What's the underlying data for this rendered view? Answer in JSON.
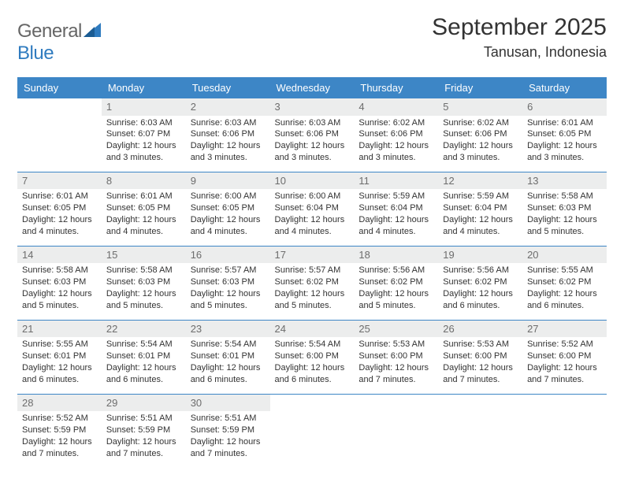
{
  "branding": {
    "logo_general": "General",
    "logo_blue": "Blue",
    "logo_accent_color": "#2f7bbf",
    "logo_text_color": "#666666"
  },
  "header": {
    "month_title": "September 2025",
    "location": "Tanusan, Indonesia",
    "title_fontsize": 30,
    "location_fontsize": 18
  },
  "calendar": {
    "type": "table",
    "header_bg": "#3d86c6",
    "header_text_color": "#ffffff",
    "daynum_bg": "#eceded",
    "daynum_color": "#6d6d6d",
    "row_border_color": "#3d86c6",
    "body_text_color": "#333333",
    "body_fontsize": 11,
    "columns": [
      "Sunday",
      "Monday",
      "Tuesday",
      "Wednesday",
      "Thursday",
      "Friday",
      "Saturday"
    ],
    "weeks": [
      [
        {
          "day": "",
          "lines": []
        },
        {
          "day": "1",
          "lines": [
            "Sunrise: 6:03 AM",
            "Sunset: 6:07 PM",
            "Daylight: 12 hours and 3 minutes."
          ]
        },
        {
          "day": "2",
          "lines": [
            "Sunrise: 6:03 AM",
            "Sunset: 6:06 PM",
            "Daylight: 12 hours and 3 minutes."
          ]
        },
        {
          "day": "3",
          "lines": [
            "Sunrise: 6:03 AM",
            "Sunset: 6:06 PM",
            "Daylight: 12 hours and 3 minutes."
          ]
        },
        {
          "day": "4",
          "lines": [
            "Sunrise: 6:02 AM",
            "Sunset: 6:06 PM",
            "Daylight: 12 hours and 3 minutes."
          ]
        },
        {
          "day": "5",
          "lines": [
            "Sunrise: 6:02 AM",
            "Sunset: 6:06 PM",
            "Daylight: 12 hours and 3 minutes."
          ]
        },
        {
          "day": "6",
          "lines": [
            "Sunrise: 6:01 AM",
            "Sunset: 6:05 PM",
            "Daylight: 12 hours and 3 minutes."
          ]
        }
      ],
      [
        {
          "day": "7",
          "lines": [
            "Sunrise: 6:01 AM",
            "Sunset: 6:05 PM",
            "Daylight: 12 hours and 4 minutes."
          ]
        },
        {
          "day": "8",
          "lines": [
            "Sunrise: 6:01 AM",
            "Sunset: 6:05 PM",
            "Daylight: 12 hours and 4 minutes."
          ]
        },
        {
          "day": "9",
          "lines": [
            "Sunrise: 6:00 AM",
            "Sunset: 6:05 PM",
            "Daylight: 12 hours and 4 minutes."
          ]
        },
        {
          "day": "10",
          "lines": [
            "Sunrise: 6:00 AM",
            "Sunset: 6:04 PM",
            "Daylight: 12 hours and 4 minutes."
          ]
        },
        {
          "day": "11",
          "lines": [
            "Sunrise: 5:59 AM",
            "Sunset: 6:04 PM",
            "Daylight: 12 hours and 4 minutes."
          ]
        },
        {
          "day": "12",
          "lines": [
            "Sunrise: 5:59 AM",
            "Sunset: 6:04 PM",
            "Daylight: 12 hours and 4 minutes."
          ]
        },
        {
          "day": "13",
          "lines": [
            "Sunrise: 5:58 AM",
            "Sunset: 6:03 PM",
            "Daylight: 12 hours and 5 minutes."
          ]
        }
      ],
      [
        {
          "day": "14",
          "lines": [
            "Sunrise: 5:58 AM",
            "Sunset: 6:03 PM",
            "Daylight: 12 hours and 5 minutes."
          ]
        },
        {
          "day": "15",
          "lines": [
            "Sunrise: 5:58 AM",
            "Sunset: 6:03 PM",
            "Daylight: 12 hours and 5 minutes."
          ]
        },
        {
          "day": "16",
          "lines": [
            "Sunrise: 5:57 AM",
            "Sunset: 6:03 PM",
            "Daylight: 12 hours and 5 minutes."
          ]
        },
        {
          "day": "17",
          "lines": [
            "Sunrise: 5:57 AM",
            "Sunset: 6:02 PM",
            "Daylight: 12 hours and 5 minutes."
          ]
        },
        {
          "day": "18",
          "lines": [
            "Sunrise: 5:56 AM",
            "Sunset: 6:02 PM",
            "Daylight: 12 hours and 5 minutes."
          ]
        },
        {
          "day": "19",
          "lines": [
            "Sunrise: 5:56 AM",
            "Sunset: 6:02 PM",
            "Daylight: 12 hours and 6 minutes."
          ]
        },
        {
          "day": "20",
          "lines": [
            "Sunrise: 5:55 AM",
            "Sunset: 6:02 PM",
            "Daylight: 12 hours and 6 minutes."
          ]
        }
      ],
      [
        {
          "day": "21",
          "lines": [
            "Sunrise: 5:55 AM",
            "Sunset: 6:01 PM",
            "Daylight: 12 hours and 6 minutes."
          ]
        },
        {
          "day": "22",
          "lines": [
            "Sunrise: 5:54 AM",
            "Sunset: 6:01 PM",
            "Daylight: 12 hours and 6 minutes."
          ]
        },
        {
          "day": "23",
          "lines": [
            "Sunrise: 5:54 AM",
            "Sunset: 6:01 PM",
            "Daylight: 12 hours and 6 minutes."
          ]
        },
        {
          "day": "24",
          "lines": [
            "Sunrise: 5:54 AM",
            "Sunset: 6:00 PM",
            "Daylight: 12 hours and 6 minutes."
          ]
        },
        {
          "day": "25",
          "lines": [
            "Sunrise: 5:53 AM",
            "Sunset: 6:00 PM",
            "Daylight: 12 hours and 7 minutes."
          ]
        },
        {
          "day": "26",
          "lines": [
            "Sunrise: 5:53 AM",
            "Sunset: 6:00 PM",
            "Daylight: 12 hours and 7 minutes."
          ]
        },
        {
          "day": "27",
          "lines": [
            "Sunrise: 5:52 AM",
            "Sunset: 6:00 PM",
            "Daylight: 12 hours and 7 minutes."
          ]
        }
      ],
      [
        {
          "day": "28",
          "lines": [
            "Sunrise: 5:52 AM",
            "Sunset: 5:59 PM",
            "Daylight: 12 hours and 7 minutes."
          ]
        },
        {
          "day": "29",
          "lines": [
            "Sunrise: 5:51 AM",
            "Sunset: 5:59 PM",
            "Daylight: 12 hours and 7 minutes."
          ]
        },
        {
          "day": "30",
          "lines": [
            "Sunrise: 5:51 AM",
            "Sunset: 5:59 PM",
            "Daylight: 12 hours and 7 minutes."
          ]
        },
        {
          "day": "",
          "lines": []
        },
        {
          "day": "",
          "lines": []
        },
        {
          "day": "",
          "lines": []
        },
        {
          "day": "",
          "lines": []
        }
      ]
    ]
  }
}
